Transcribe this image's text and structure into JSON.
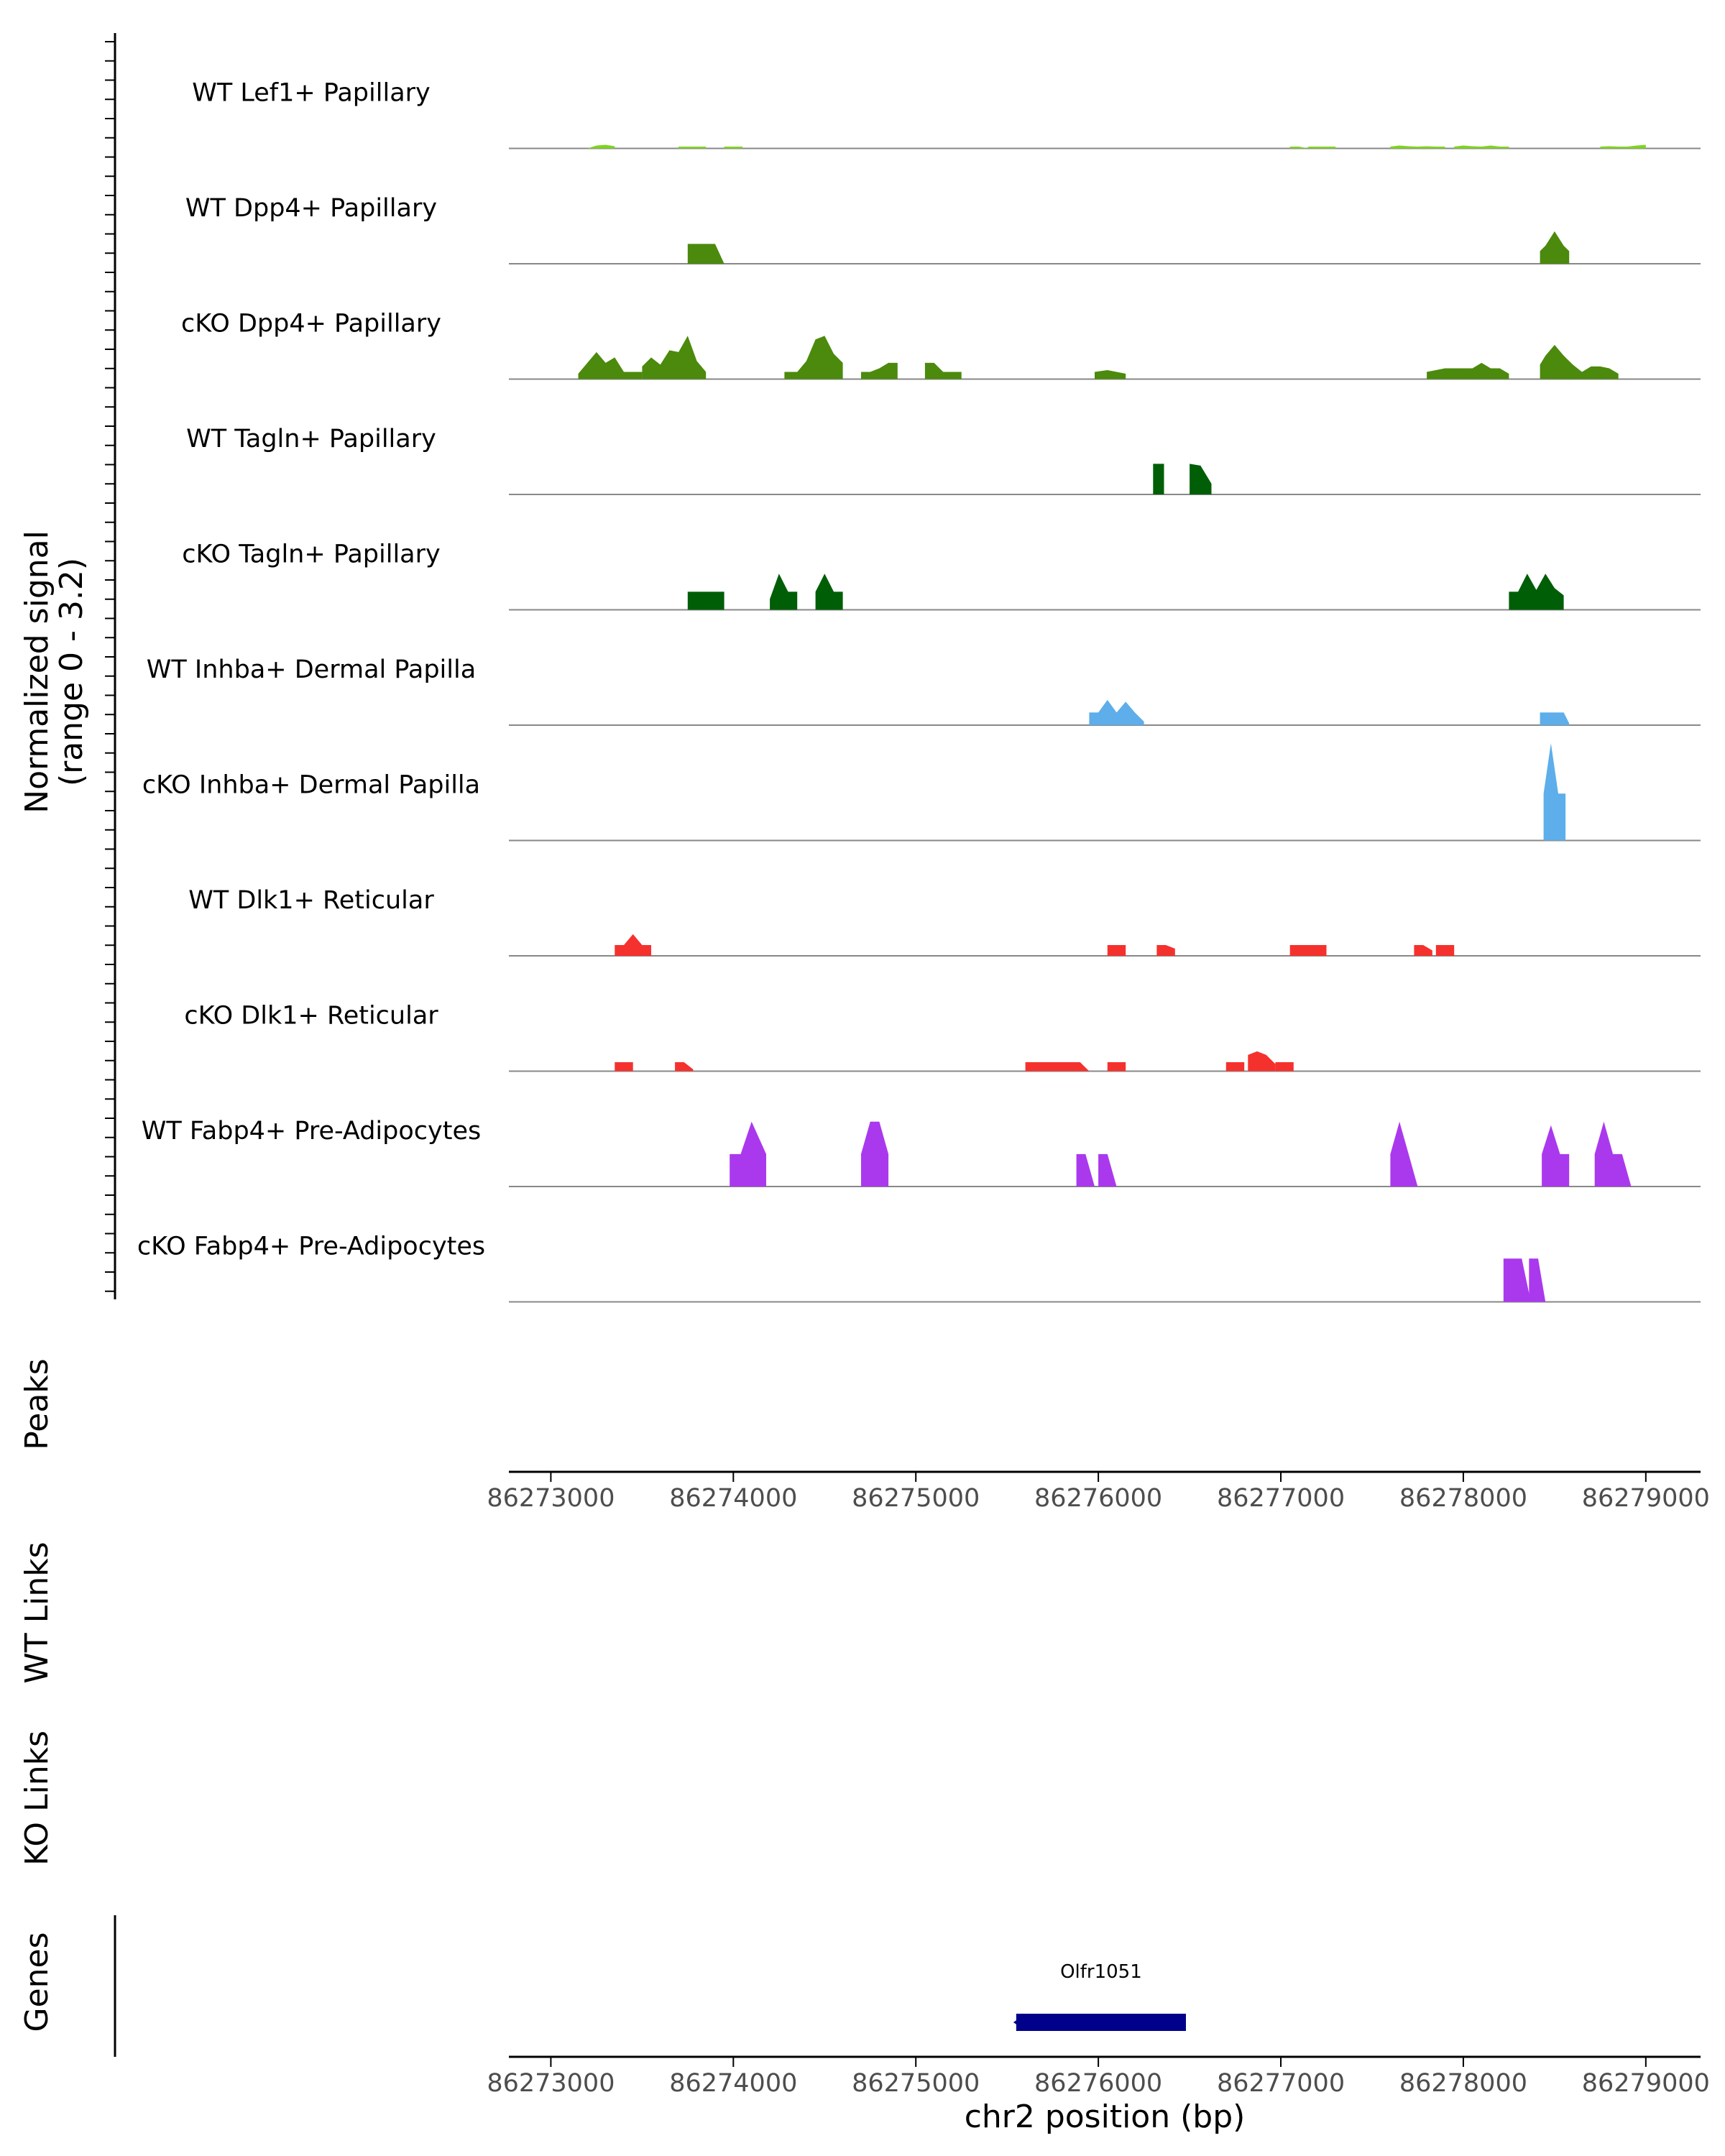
{
  "chart_data": {
    "type": "area",
    "title": "",
    "ylabel_signal_line1": "Normalized signal",
    "ylabel_signal_line2": "(range 0 - 3.2)",
    "signal_ylim": [
      0,
      3.2
    ],
    "xlabel": "chr2 position (bp)",
    "xlim": [
      86272770,
      86279300
    ],
    "x_ticks": [
      86273000,
      86274000,
      86275000,
      86276000,
      86277000,
      86278000,
      86279000
    ],
    "x_tick_labels": [
      "86273000",
      "86274000",
      "86275000",
      "86276000",
      "86277000",
      "86278000",
      "86279000"
    ],
    "panel_labels": {
      "peaks": "Peaks",
      "wt_links": "WT Links",
      "ko_links": "KO Links",
      "genes": "Genes"
    },
    "tracks": [
      {
        "name": "WT Lef1+ Papillary",
        "color": "#7FD321",
        "regions": [
          {
            "x": [
              86273200,
              86273250,
              86273300,
              86273350
            ],
            "y": [
              0,
              0.08,
              0.1,
              0.06
            ]
          },
          {
            "x": [
              86273700,
              86273750,
              86273800,
              86273850
            ],
            "y": [
              0.05,
              0.05,
              0.05,
              0.05
            ]
          },
          {
            "x": [
              86273950,
              86274000,
              86274050
            ],
            "y": [
              0.05,
              0.05,
              0.05
            ]
          },
          {
            "x": [
              86277050,
              86277100,
              86277150,
              86277200
            ],
            "y": [
              0.05,
              0.05,
              0,
              0.05
            ]
          },
          {
            "x": [
              86277150,
              86277200,
              86277250,
              86277300
            ],
            "y": [
              0.05,
              0.05,
              0.05,
              0.05
            ]
          },
          {
            "x": [
              86277600,
              86277650,
              86277700,
              86277750,
              86277800,
              86277850,
              86277900
            ],
            "y": [
              0.05,
              0.08,
              0.06,
              0.05,
              0.06,
              0.05,
              0.05
            ]
          },
          {
            "x": [
              86277950,
              86278000,
              86278050,
              86278100,
              86278150,
              86278200,
              86278250
            ],
            "y": [
              0.05,
              0.08,
              0.06,
              0.05,
              0.08,
              0.05,
              0.05
            ]
          },
          {
            "x": [
              86278750,
              86278800,
              86278850,
              86278900,
              86278950,
              86279000
            ],
            "y": [
              0.05,
              0.06,
              0.05,
              0.05,
              0.08,
              0.1
            ]
          }
        ]
      },
      {
        "name": "WT Dpp4+ Papillary",
        "color": "#4B8A0C",
        "regions": [
          {
            "x": [
              86273750,
              86273800,
              86273850,
              86273900,
              86273950
            ],
            "y": [
              0.55,
              0.55,
              0.55,
              0.55,
              0
            ]
          },
          {
            "x": [
              86278420,
              86278450,
              86278500,
              86278550,
              86278580
            ],
            "y": [
              0.35,
              0.5,
              0.9,
              0.5,
              0.35
            ]
          }
        ]
      },
      {
        "name": "cKO Dpp4+ Papillary",
        "color": "#4B8A0C",
        "regions": [
          {
            "x": [
              86273150,
              86273200,
              86273250,
              86273300,
              86273350,
              86273400,
              86273450,
              86273500
            ],
            "y": [
              0.15,
              0.45,
              0.75,
              0.45,
              0.6,
              0.2,
              0.2,
              0.2
            ]
          },
          {
            "x": [
              86273500,
              86273550,
              86273600,
              86273650,
              86273700,
              86273750,
              86273800,
              86273850
            ],
            "y": [
              0.35,
              0.6,
              0.4,
              0.8,
              0.75,
              1.2,
              0.5,
              0.2
            ]
          },
          {
            "x": [
              86274280,
              86274350,
              86274400,
              86274450,
              86274500,
              86274550,
              86274600
            ],
            "y": [
              0.2,
              0.2,
              0.5,
              1.1,
              1.2,
              0.7,
              0.45
            ]
          },
          {
            "x": [
              86274700,
              86274750,
              86274800,
              86274850,
              86274900
            ],
            "y": [
              0.2,
              0.2,
              0.3,
              0.45,
              0.45
            ]
          },
          {
            "x": [
              86275050,
              86275100,
              86275150,
              86275200,
              86275250
            ],
            "y": [
              0.45,
              0.45,
              0.2,
              0.2,
              0.2
            ]
          },
          {
            "x": [
              86275980,
              86276050,
              86276100,
              86276150
            ],
            "y": [
              0.2,
              0.25,
              0.2,
              0.15
            ]
          },
          {
            "x": [
              86277800,
              86277900,
              86278000,
              86278050,
              86278100,
              86278150,
              86278200,
              86278250
            ],
            "y": [
              0.2,
              0.3,
              0.3,
              0.3,
              0.45,
              0.3,
              0.3,
              0.15
            ]
          },
          {
            "x": [
              86278420,
              86278450,
              86278500,
              86278550,
              86278600,
              86278650,
              86278700,
              86278750,
              86278800,
              86278850
            ],
            "y": [
              0.4,
              0.65,
              0.95,
              0.65,
              0.4,
              0.2,
              0.35,
              0.35,
              0.3,
              0.15
            ]
          }
        ]
      },
      {
        "name": "WT Tagln+ Papillary",
        "color": "#005E07",
        "regions": [
          {
            "x": [
              86276300,
              86276360
            ],
            "y": [
              0.85,
              0.85
            ]
          },
          {
            "x": [
              86276500,
              86276560,
              86276620
            ],
            "y": [
              0.85,
              0.8,
              0.3
            ]
          }
        ]
      },
      {
        "name": "cKO Tagln+ Papillary",
        "color": "#005E07",
        "regions": [
          {
            "x": [
              86273750,
              86273850,
              86273900,
              86273950
            ],
            "y": [
              0.5,
              0.5,
              0.5,
              0.5
            ]
          },
          {
            "x": [
              86274200,
              86274250,
              86274300,
              86274350
            ],
            "y": [
              0.3,
              1.0,
              0.5,
              0.5
            ]
          },
          {
            "x": [
              86274450,
              86274500,
              86274550,
              86274600
            ],
            "y": [
              0.5,
              1.0,
              0.5,
              0.5
            ]
          },
          {
            "x": [
              86278250,
              86278300,
              86278350,
              86278400,
              86278450,
              86278500,
              86278550
            ],
            "y": [
              0.5,
              0.5,
              1.0,
              0.55,
              1.0,
              0.6,
              0.4
            ]
          }
        ]
      },
      {
        "name": "WT Inhba+ Dermal Papilla",
        "color": "#5DAEEA",
        "regions": [
          {
            "x": [
              86275950,
              86276000,
              86276050,
              86276100,
              86276150,
              86276200,
              86276250
            ],
            "y": [
              0.35,
              0.35,
              0.7,
              0.35,
              0.65,
              0.35,
              0.1
            ]
          },
          {
            "x": [
              86278420,
              86278450,
              86278500,
              86278550,
              86278580
            ],
            "y": [
              0.35,
              0.35,
              0.35,
              0.35,
              0.05
            ]
          }
        ]
      },
      {
        "name": "cKO Inhba+ Dermal Papilla",
        "color": "#5DAEEA",
        "regions": [
          {
            "x": [
              86278440,
              86278480,
              86278520,
              86278560
            ],
            "y": [
              1.3,
              2.7,
              1.3,
              1.3
            ]
          }
        ]
      },
      {
        "name": "WT Dlk1+ Reticular",
        "color": "#F5312E",
        "regions": [
          {
            "x": [
              86273350,
              86273400,
              86273450,
              86273500,
              86273550
            ],
            "y": [
              0.3,
              0.3,
              0.6,
              0.3,
              0.3
            ]
          },
          {
            "x": [
              86276050,
              86276100,
              86276150
            ],
            "y": [
              0.3,
              0.3,
              0.3
            ]
          },
          {
            "x": [
              86276320,
              86276370,
              86276420
            ],
            "y": [
              0.3,
              0.3,
              0.2
            ]
          },
          {
            "x": [
              86277050,
              86277100,
              86277150,
              86277200,
              86277250
            ],
            "y": [
              0.3,
              0.3,
              0.3,
              0.3,
              0.3
            ]
          },
          {
            "x": [
              86277730,
              86277780,
              86277830
            ],
            "y": [
              0.3,
              0.3,
              0.15
            ]
          },
          {
            "x": [
              86277850,
              86277900,
              86277950
            ],
            "y": [
              0.3,
              0.3,
              0.3
            ]
          }
        ]
      },
      {
        "name": "cKO Dlk1+ Reticular",
        "color": "#F5312E",
        "regions": [
          {
            "x": [
              86273350,
              86273400,
              86273450
            ],
            "y": [
              0.25,
              0.25,
              0.25
            ]
          },
          {
            "x": [
              86273680,
              86273730,
              86273780
            ],
            "y": [
              0.25,
              0.25,
              0.05
            ]
          },
          {
            "x": [
              86275600,
              86275700,
              86275800,
              86275900,
              86275950
            ],
            "y": [
              0.25,
              0.25,
              0.25,
              0.25,
              0
            ]
          },
          {
            "x": [
              86276050,
              86276100,
              86276150
            ],
            "y": [
              0.25,
              0.25,
              0.25
            ]
          },
          {
            "x": [
              86276700,
              86276750,
              86276800
            ],
            "y": [
              0.25,
              0.25,
              0.25
            ]
          },
          {
            "x": [
              86276820,
              86276870,
              86276920,
              86276970
            ],
            "y": [
              0.45,
              0.55,
              0.45,
              0.2
            ]
          },
          {
            "x": [
              86276970,
              86277020,
              86277070
            ],
            "y": [
              0.25,
              0.25,
              0.25
            ]
          }
        ]
      },
      {
        "name": "WT Fabp4+ Pre-Adipocytes",
        "color": "#AA39EE",
        "regions": [
          {
            "x": [
              86273980,
              86274040,
              86274100,
              86274180
            ],
            "y": [
              0.9,
              0.9,
              1.8,
              0.9
            ]
          },
          {
            "x": [
              86274700,
              86274750,
              86274800,
              86274850
            ],
            "y": [
              0.9,
              1.8,
              1.8,
              0.9
            ]
          },
          {
            "x": [
              86275880,
              86275930,
              86275980
            ],
            "y": [
              0.9,
              0.9,
              0
            ]
          },
          {
            "x": [
              86276000,
              86276050,
              86276100
            ],
            "y": [
              0.9,
              0.9,
              0
            ]
          },
          {
            "x": [
              86277600,
              86277650,
              86277700,
              86277750
            ],
            "y": [
              0.9,
              1.8,
              0.9,
              0
            ]
          },
          {
            "x": [
              86278430,
              86278480,
              86278530,
              86278580
            ],
            "y": [
              0.9,
              1.7,
              0.9,
              0.9
            ]
          },
          {
            "x": [
              86278720,
              86278770,
              86278820,
              86278870,
              86278920
            ],
            "y": [
              0.9,
              1.8,
              0.9,
              0.9,
              0
            ]
          }
        ]
      },
      {
        "name": "cKO Fabp4+ Pre-Adipocytes",
        "color": "#AA39EE",
        "regions": [
          {
            "x": [
              86278220,
              86278270,
              86278320,
              86278370
            ],
            "y": [
              1.2,
              1.2,
              1.2,
              0
            ]
          },
          {
            "x": [
              86278360,
              86278410,
              86278450
            ],
            "y": [
              1.2,
              1.2,
              0
            ]
          }
        ]
      }
    ],
    "genes": [
      {
        "name": "Olfr1051",
        "start": 86275550,
        "end": 86276480,
        "color": "#00008B",
        "strand": "-"
      }
    ]
  }
}
